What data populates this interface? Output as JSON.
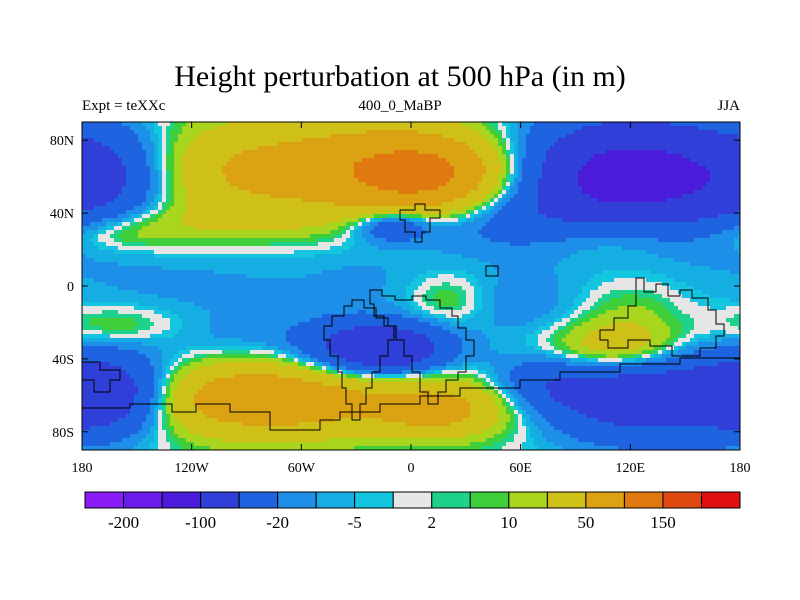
{
  "chart_data": {
    "type": "heatmap",
    "title": "Height perturbation at 500 hPa (in m)",
    "left_string": "Expt = teXXc",
    "center_string": "400_0_MaBP",
    "right_string": "JJA",
    "x_tick_labels": [
      "180",
      "120W",
      "60W",
      "0",
      "60E",
      "120E",
      "180"
    ],
    "x_tick_values": [
      -180,
      -120,
      -60,
      0,
      60,
      120,
      180
    ],
    "y_tick_labels": [
      "80N",
      "40N",
      "0",
      "40S",
      "80S"
    ],
    "y_tick_values": [
      80,
      40,
      0,
      -40,
      -80
    ],
    "xlim": [
      -180,
      180
    ],
    "ylim": [
      -90,
      90
    ],
    "colorbar": {
      "colors": [
        "#8a1df5",
        "#6a1de8",
        "#4a1cd9",
        "#2f3fd8",
        "#1e64e0",
        "#1e8fe8",
        "#14aee2",
        "#14c5e0",
        "#e6e6e6",
        "#1ed28c",
        "#3fcf3a",
        "#a8d61e",
        "#cfc018",
        "#dba312",
        "#e07a10",
        "#e04a10",
        "#e01010"
      ],
      "labels": [
        "-200",
        "-100",
        "-20",
        "-5",
        "2",
        "10",
        "50",
        "150"
      ]
    },
    "features": [
      {
        "lon": -30,
        "lat": 65,
        "amp": 70,
        "sx": 55,
        "sy": 18
      },
      {
        "lon": 10,
        "lat": 60,
        "amp": 80,
        "sx": 30,
        "sy": 15
      },
      {
        "lon": -110,
        "lat": 60,
        "amp": 25,
        "sx": 35,
        "sy": 20
      },
      {
        "lon": 120,
        "lat": 60,
        "amp": -130,
        "sx": 45,
        "sy": 22
      },
      {
        "lon": -165,
        "lat": 60,
        "amp": -45,
        "sx": 25,
        "sy": 20
      },
      {
        "lon": -10,
        "lat": 33,
        "amp": -45,
        "sx": 15,
        "sy": 6
      },
      {
        "lon": -160,
        "lat": 30,
        "amp": 25,
        "sx": 25,
        "sy": 8
      },
      {
        "lon": 110,
        "lat": 28,
        "amp": 25,
        "sx": 30,
        "sy": 10
      },
      {
        "lon": -90,
        "lat": 35,
        "amp": 12,
        "sx": 40,
        "sy": 8
      },
      {
        "lon": 40,
        "lat": 35,
        "amp": -25,
        "sx": 40,
        "sy": 12
      },
      {
        "lon": -120,
        "lat": 0,
        "amp": -12,
        "sx": 60,
        "sy": 18
      },
      {
        "lon": -20,
        "lat": 5,
        "amp": -8,
        "sx": 30,
        "sy": 15
      },
      {
        "lon": 60,
        "lat": -10,
        "amp": -15,
        "sx": 25,
        "sy": 15
      },
      {
        "lon": 20,
        "lat": -8,
        "amp": 15,
        "sx": 15,
        "sy": 10
      },
      {
        "lon": -160,
        "lat": -22,
        "amp": 18,
        "sx": 25,
        "sy": 8
      },
      {
        "lon": -10,
        "lat": -35,
        "amp": -90,
        "sx": 22,
        "sy": 10
      },
      {
        "lon": -40,
        "lat": -35,
        "amp": -30,
        "sx": 20,
        "sy": 12
      },
      {
        "lon": -90,
        "lat": -30,
        "amp": -12,
        "sx": 40,
        "sy": 10
      },
      {
        "lon": -80,
        "lat": -62,
        "amp": 85,
        "sx": 55,
        "sy": 14
      },
      {
        "lon": 30,
        "lat": -65,
        "amp": 40,
        "sx": 30,
        "sy": 12
      },
      {
        "lon": -165,
        "lat": -60,
        "amp": -90,
        "sx": 25,
        "sy": 15
      },
      {
        "lon": 10,
        "lat": -70,
        "amp": 25,
        "sx": 20,
        "sy": 8
      },
      {
        "lon": 110,
        "lat": -35,
        "amp": 45,
        "sx": 28,
        "sy": 10
      },
      {
        "lon": 120,
        "lat": -20,
        "amp": 15,
        "sx": 20,
        "sy": 15
      },
      {
        "lon": 130,
        "lat": -60,
        "amp": -80,
        "sx": 40,
        "sy": 18
      },
      {
        "lon": 70,
        "lat": -55,
        "amp": -35,
        "sx": 25,
        "sy": 12
      }
    ]
  }
}
